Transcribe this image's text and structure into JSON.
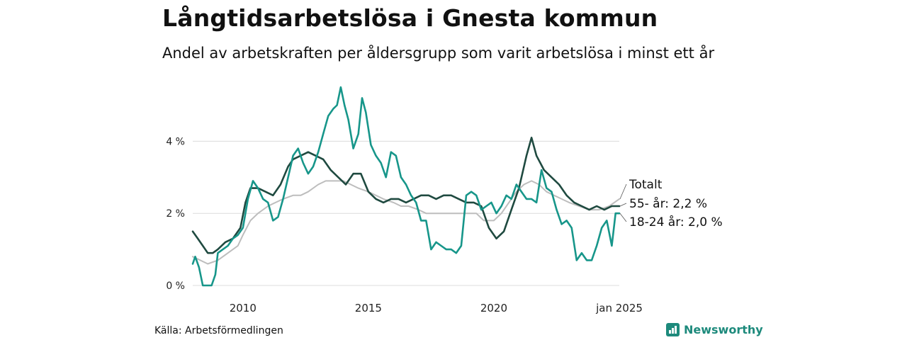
{
  "header": {
    "title": "Långtidsarbetslösa i Gnesta kommun",
    "subtitle": "Andel av arbetskraften per åldersgrupp som varit arbetslösa i minst ett år"
  },
  "footer": {
    "source": "Källa: Arbetsförmedlingen",
    "brand": "Newsworthy"
  },
  "chart_data": {
    "type": "line",
    "x_range": [
      2008.0,
      2025.0
    ],
    "ylim": [
      0,
      5.6
    ],
    "grid": true,
    "y_ticks": [
      {
        "value": 0,
        "label": "0 %"
      },
      {
        "value": 2,
        "label": "2 %"
      },
      {
        "value": 4,
        "label": "4 %"
      }
    ],
    "x_ticks": [
      {
        "value": 2010,
        "label": "2010"
      },
      {
        "value": 2015,
        "label": "2015"
      },
      {
        "value": 2020,
        "label": "2020"
      },
      {
        "value": 2025,
        "label": "jan 2025"
      }
    ],
    "series": [
      {
        "name": "Totalt",
        "end_label": "Totalt",
        "color": "#bdbdbd",
        "points": [
          [
            2008.0,
            0.8
          ],
          [
            2008.3,
            0.7
          ],
          [
            2008.6,
            0.6
          ],
          [
            2009.0,
            0.7
          ],
          [
            2009.4,
            0.9
          ],
          [
            2009.8,
            1.1
          ],
          [
            2010.0,
            1.4
          ],
          [
            2010.3,
            1.8
          ],
          [
            2010.6,
            2.0
          ],
          [
            2011.0,
            2.2
          ],
          [
            2011.3,
            2.3
          ],
          [
            2011.6,
            2.4
          ],
          [
            2012.0,
            2.5
          ],
          [
            2012.3,
            2.5
          ],
          [
            2012.6,
            2.6
          ],
          [
            2013.0,
            2.8
          ],
          [
            2013.3,
            2.9
          ],
          [
            2013.6,
            2.9
          ],
          [
            2014.0,
            2.9
          ],
          [
            2014.3,
            2.8
          ],
          [
            2014.6,
            2.7
          ],
          [
            2015.0,
            2.6
          ],
          [
            2015.3,
            2.5
          ],
          [
            2015.6,
            2.4
          ],
          [
            2016.0,
            2.3
          ],
          [
            2016.3,
            2.2
          ],
          [
            2016.6,
            2.2
          ],
          [
            2017.0,
            2.1
          ],
          [
            2017.3,
            2.0
          ],
          [
            2017.6,
            2.0
          ],
          [
            2018.0,
            2.0
          ],
          [
            2018.3,
            2.0
          ],
          [
            2018.6,
            2.0
          ],
          [
            2019.0,
            2.0
          ],
          [
            2019.3,
            2.0
          ],
          [
            2019.6,
            1.8
          ],
          [
            2020.0,
            1.8
          ],
          [
            2020.3,
            2.0
          ],
          [
            2020.6,
            2.3
          ],
          [
            2020.9,
            2.6
          ],
          [
            2021.2,
            2.8
          ],
          [
            2021.5,
            2.9
          ],
          [
            2021.8,
            2.8
          ],
          [
            2022.1,
            2.6
          ],
          [
            2022.4,
            2.5
          ],
          [
            2022.7,
            2.4
          ],
          [
            2023.0,
            2.3
          ],
          [
            2023.4,
            2.2
          ],
          [
            2023.8,
            2.1
          ],
          [
            2024.2,
            2.1
          ],
          [
            2024.6,
            2.2
          ],
          [
            2025.0,
            2.4
          ]
        ]
      },
      {
        "name": "55- år",
        "end_label": "55- år: 2,2 %",
        "color": "#1f4a40",
        "points": [
          [
            2008.0,
            1.5
          ],
          [
            2008.2,
            1.3
          ],
          [
            2008.4,
            1.1
          ],
          [
            2008.6,
            0.9
          ],
          [
            2008.8,
            0.9
          ],
          [
            2009.0,
            1.0
          ],
          [
            2009.3,
            1.2
          ],
          [
            2009.6,
            1.3
          ],
          [
            2009.9,
            1.6
          ],
          [
            2010.1,
            2.3
          ],
          [
            2010.3,
            2.7
          ],
          [
            2010.6,
            2.7
          ],
          [
            2010.9,
            2.6
          ],
          [
            2011.2,
            2.5
          ],
          [
            2011.5,
            2.8
          ],
          [
            2011.8,
            3.3
          ],
          [
            2012.0,
            3.5
          ],
          [
            2012.3,
            3.6
          ],
          [
            2012.6,
            3.7
          ],
          [
            2012.9,
            3.6
          ],
          [
            2013.2,
            3.5
          ],
          [
            2013.5,
            3.2
          ],
          [
            2013.8,
            3.0
          ],
          [
            2014.1,
            2.8
          ],
          [
            2014.4,
            3.1
          ],
          [
            2014.7,
            3.1
          ],
          [
            2015.0,
            2.6
          ],
          [
            2015.3,
            2.4
          ],
          [
            2015.6,
            2.3
          ],
          [
            2015.9,
            2.4
          ],
          [
            2016.2,
            2.4
          ],
          [
            2016.5,
            2.3
          ],
          [
            2016.8,
            2.4
          ],
          [
            2017.1,
            2.5
          ],
          [
            2017.4,
            2.5
          ],
          [
            2017.7,
            2.4
          ],
          [
            2018.0,
            2.5
          ],
          [
            2018.3,
            2.5
          ],
          [
            2018.6,
            2.4
          ],
          [
            2018.9,
            2.3
          ],
          [
            2019.2,
            2.3
          ],
          [
            2019.5,
            2.2
          ],
          [
            2019.8,
            1.6
          ],
          [
            2020.1,
            1.3
          ],
          [
            2020.4,
            1.5
          ],
          [
            2020.7,
            2.1
          ],
          [
            2021.0,
            2.7
          ],
          [
            2021.3,
            3.6
          ],
          [
            2021.5,
            4.1
          ],
          [
            2021.7,
            3.6
          ],
          [
            2022.0,
            3.2
          ],
          [
            2022.3,
            3.0
          ],
          [
            2022.6,
            2.8
          ],
          [
            2022.9,
            2.5
          ],
          [
            2023.2,
            2.3
          ],
          [
            2023.5,
            2.2
          ],
          [
            2023.8,
            2.1
          ],
          [
            2024.1,
            2.2
          ],
          [
            2024.4,
            2.1
          ],
          [
            2024.7,
            2.2
          ],
          [
            2025.0,
            2.2
          ]
        ]
      },
      {
        "name": "18-24 år",
        "end_label": "18-24 år: 2,0 %",
        "color": "#17968a",
        "points": [
          [
            2008.0,
            0.6
          ],
          [
            2008.1,
            0.8
          ],
          [
            2008.25,
            0.5
          ],
          [
            2008.4,
            0.0
          ],
          [
            2008.6,
            0.0
          ],
          [
            2008.75,
            0.0
          ],
          [
            2008.9,
            0.3
          ],
          [
            2009.0,
            0.9
          ],
          [
            2009.2,
            1.0
          ],
          [
            2009.4,
            1.1
          ],
          [
            2009.6,
            1.3
          ],
          [
            2009.8,
            1.4
          ],
          [
            2010.0,
            1.6
          ],
          [
            2010.2,
            2.4
          ],
          [
            2010.4,
            2.9
          ],
          [
            2010.6,
            2.7
          ],
          [
            2010.8,
            2.4
          ],
          [
            2011.0,
            2.3
          ],
          [
            2011.2,
            1.8
          ],
          [
            2011.4,
            1.9
          ],
          [
            2011.6,
            2.4
          ],
          [
            2011.8,
            3.0
          ],
          [
            2012.0,
            3.6
          ],
          [
            2012.2,
            3.8
          ],
          [
            2012.4,
            3.4
          ],
          [
            2012.6,
            3.1
          ],
          [
            2012.8,
            3.3
          ],
          [
            2013.0,
            3.7
          ],
          [
            2013.2,
            4.2
          ],
          [
            2013.4,
            4.7
          ],
          [
            2013.6,
            4.9
          ],
          [
            2013.75,
            5.0
          ],
          [
            2013.9,
            5.5
          ],
          [
            2014.05,
            5.0
          ],
          [
            2014.2,
            4.6
          ],
          [
            2014.4,
            3.8
          ],
          [
            2014.6,
            4.2
          ],
          [
            2014.75,
            5.2
          ],
          [
            2014.9,
            4.8
          ],
          [
            2015.1,
            3.9
          ],
          [
            2015.3,
            3.6
          ],
          [
            2015.5,
            3.4
          ],
          [
            2015.7,
            3.0
          ],
          [
            2015.9,
            3.7
          ],
          [
            2016.1,
            3.6
          ],
          [
            2016.3,
            3.0
          ],
          [
            2016.5,
            2.8
          ],
          [
            2016.7,
            2.5
          ],
          [
            2016.9,
            2.3
          ],
          [
            2017.1,
            1.8
          ],
          [
            2017.3,
            1.8
          ],
          [
            2017.5,
            1.0
          ],
          [
            2017.7,
            1.2
          ],
          [
            2017.9,
            1.1
          ],
          [
            2018.1,
            1.0
          ],
          [
            2018.3,
            1.0
          ],
          [
            2018.5,
            0.9
          ],
          [
            2018.7,
            1.1
          ],
          [
            2018.9,
            2.5
          ],
          [
            2019.1,
            2.6
          ],
          [
            2019.3,
            2.5
          ],
          [
            2019.5,
            2.1
          ],
          [
            2019.7,
            2.2
          ],
          [
            2019.9,
            2.3
          ],
          [
            2020.1,
            2.0
          ],
          [
            2020.3,
            2.2
          ],
          [
            2020.5,
            2.5
          ],
          [
            2020.7,
            2.4
          ],
          [
            2020.9,
            2.8
          ],
          [
            2021.1,
            2.6
          ],
          [
            2021.3,
            2.4
          ],
          [
            2021.5,
            2.4
          ],
          [
            2021.7,
            2.3
          ],
          [
            2021.9,
            3.2
          ],
          [
            2022.1,
            2.7
          ],
          [
            2022.3,
            2.6
          ],
          [
            2022.5,
            2.1
          ],
          [
            2022.7,
            1.7
          ],
          [
            2022.9,
            1.8
          ],
          [
            2023.1,
            1.6
          ],
          [
            2023.3,
            0.7
          ],
          [
            2023.5,
            0.9
          ],
          [
            2023.7,
            0.7
          ],
          [
            2023.9,
            0.7
          ],
          [
            2024.1,
            1.1
          ],
          [
            2024.3,
            1.6
          ],
          [
            2024.5,
            1.8
          ],
          [
            2024.7,
            1.1
          ],
          [
            2024.85,
            2.0
          ],
          [
            2025.0,
            2.0
          ]
        ]
      }
    ]
  }
}
